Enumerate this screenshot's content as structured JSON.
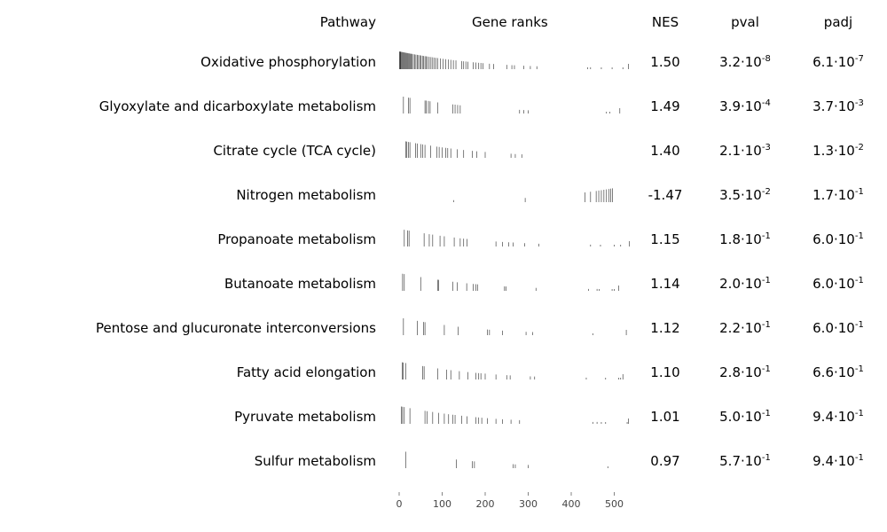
{
  "headers": {
    "pathway": "Pathway",
    "gene_ranks": "Gene ranks",
    "nes": "NES",
    "pval": "pval",
    "padj": "padj"
  },
  "chart_data": {
    "type": "table",
    "columns": [
      "Pathway",
      "Gene ranks",
      "NES",
      "pval",
      "padj"
    ],
    "x_ticks": [
      0,
      100,
      200,
      300,
      400,
      500
    ],
    "xlim": [
      0,
      545
    ],
    "rows": [
      {
        "pathway": "Oxidative phosphorylation",
        "nes": "1.50",
        "pval": {
          "mantissa": "3.2",
          "exponent": "-8"
        },
        "padj": {
          "mantissa": "6.1",
          "exponent": "-7"
        },
        "ranks": [
          1,
          2,
          3,
          4,
          6,
          8,
          10,
          12,
          14,
          16,
          18,
          20,
          22,
          24,
          26,
          28,
          30,
          33,
          36,
          39,
          42,
          45,
          48,
          51,
          54,
          57,
          60,
          63,
          66,
          70,
          74,
          78,
          82,
          86,
          90,
          96,
          102,
          108,
          114,
          120,
          126,
          132,
          145,
          150,
          155,
          160,
          172,
          178,
          185,
          190,
          195,
          210,
          220,
          250,
          262,
          268,
          290,
          305,
          320,
          438,
          445,
          470,
          495,
          520,
          533
        ]
      },
      {
        "pathway": "Glyoxylate and dicarboxylate metabolism",
        "nes": "1.49",
        "pval": {
          "mantissa": "3.9",
          "exponent": "-4"
        },
        "padj": {
          "mantissa": "3.7",
          "exponent": "-3"
        },
        "ranks": [
          10,
          22,
          25,
          60,
          63,
          68,
          72,
          90,
          125,
          130,
          136,
          142,
          280,
          290,
          300,
          482,
          490,
          513
        ]
      },
      {
        "pathway": "Citrate cycle (TCA cycle)",
        "nes": "1.40",
        "pval": {
          "mantissa": "2.1",
          "exponent": "-3"
        },
        "padj": {
          "mantissa": "1.3",
          "exponent": "-2"
        },
        "ranks": [
          15,
          18,
          22,
          25,
          38,
          42,
          50,
          55,
          60,
          73,
          88,
          93,
          100,
          108,
          113,
          120,
          135,
          150,
          170,
          180,
          200,
          260,
          270,
          285
        ]
      },
      {
        "pathway": "Nitrogen metabolism",
        "nes": "-1.47",
        "pval": {
          "mantissa": "3.5",
          "exponent": "-2"
        },
        "padj": {
          "mantissa": "1.7",
          "exponent": "-1"
        },
        "ranks": [
          127,
          293,
          432,
          445,
          458,
          464,
          470,
          476,
          482,
          488,
          492,
          496
        ]
      },
      {
        "pathway": "Propanoate metabolism",
        "nes": "1.15",
        "pval": {
          "mantissa": "1.8",
          "exponent": "-1"
        },
        "padj": {
          "mantissa": "6.0",
          "exponent": "-1"
        },
        "ranks": [
          12,
          20,
          23,
          58,
          70,
          78,
          95,
          105,
          128,
          142,
          150,
          158,
          225,
          240,
          255,
          265,
          292,
          325,
          445,
          468,
          500,
          515,
          535
        ]
      },
      {
        "pathway": "Butanoate metabolism",
        "nes": "1.14",
        "pval": {
          "mantissa": "2.0",
          "exponent": "-1"
        },
        "padj": {
          "mantissa": "6.0",
          "exponent": "-1"
        },
        "ranks": [
          8,
          12,
          50,
          90,
          92,
          125,
          135,
          157,
          172,
          178,
          182,
          245,
          248,
          318,
          440,
          460,
          465,
          495,
          500,
          510
        ]
      },
      {
        "pathway": "Pentose and glucuronate interconversions",
        "nes": "1.12",
        "pval": {
          "mantissa": "2.2",
          "exponent": "-1"
        },
        "padj": {
          "mantissa": "6.0",
          "exponent": "-1"
        },
        "ranks": [
          10,
          42,
          57,
          60,
          105,
          137,
          205,
          210,
          240,
          295,
          310,
          450,
          528
        ]
      },
      {
        "pathway": "Fatty acid elongation",
        "nes": "1.10",
        "pval": {
          "mantissa": "2.8",
          "exponent": "-1"
        },
        "padj": {
          "mantissa": "6.6",
          "exponent": "-1"
        },
        "ranks": [
          7,
          9,
          15,
          55,
          58,
          90,
          110,
          120,
          140,
          160,
          178,
          185,
          190,
          200,
          225,
          250,
          258,
          305,
          315,
          435,
          480,
          510,
          515,
          520
        ]
      },
      {
        "pathway": "Pyruvate metabolism",
        "nes": "1.01",
        "pval": {
          "mantissa": "5.0",
          "exponent": "-1"
        },
        "padj": {
          "mantissa": "9.4",
          "exponent": "-1"
        },
        "ranks": [
          5,
          8,
          12,
          25,
          60,
          65,
          78,
          92,
          105,
          115,
          125,
          130,
          145,
          158,
          178,
          185,
          192,
          205,
          225,
          240,
          260,
          280,
          450,
          460,
          470,
          480,
          530,
          533
        ]
      },
      {
        "pathway": "Sulfur metabolism",
        "nes": "0.97",
        "pval": {
          "mantissa": "5.7",
          "exponent": "-1"
        },
        "padj": {
          "mantissa": "9.4",
          "exponent": "-1"
        },
        "ranks": [
          15,
          133,
          170,
          175,
          265,
          270,
          300,
          485
        ]
      }
    ]
  }
}
